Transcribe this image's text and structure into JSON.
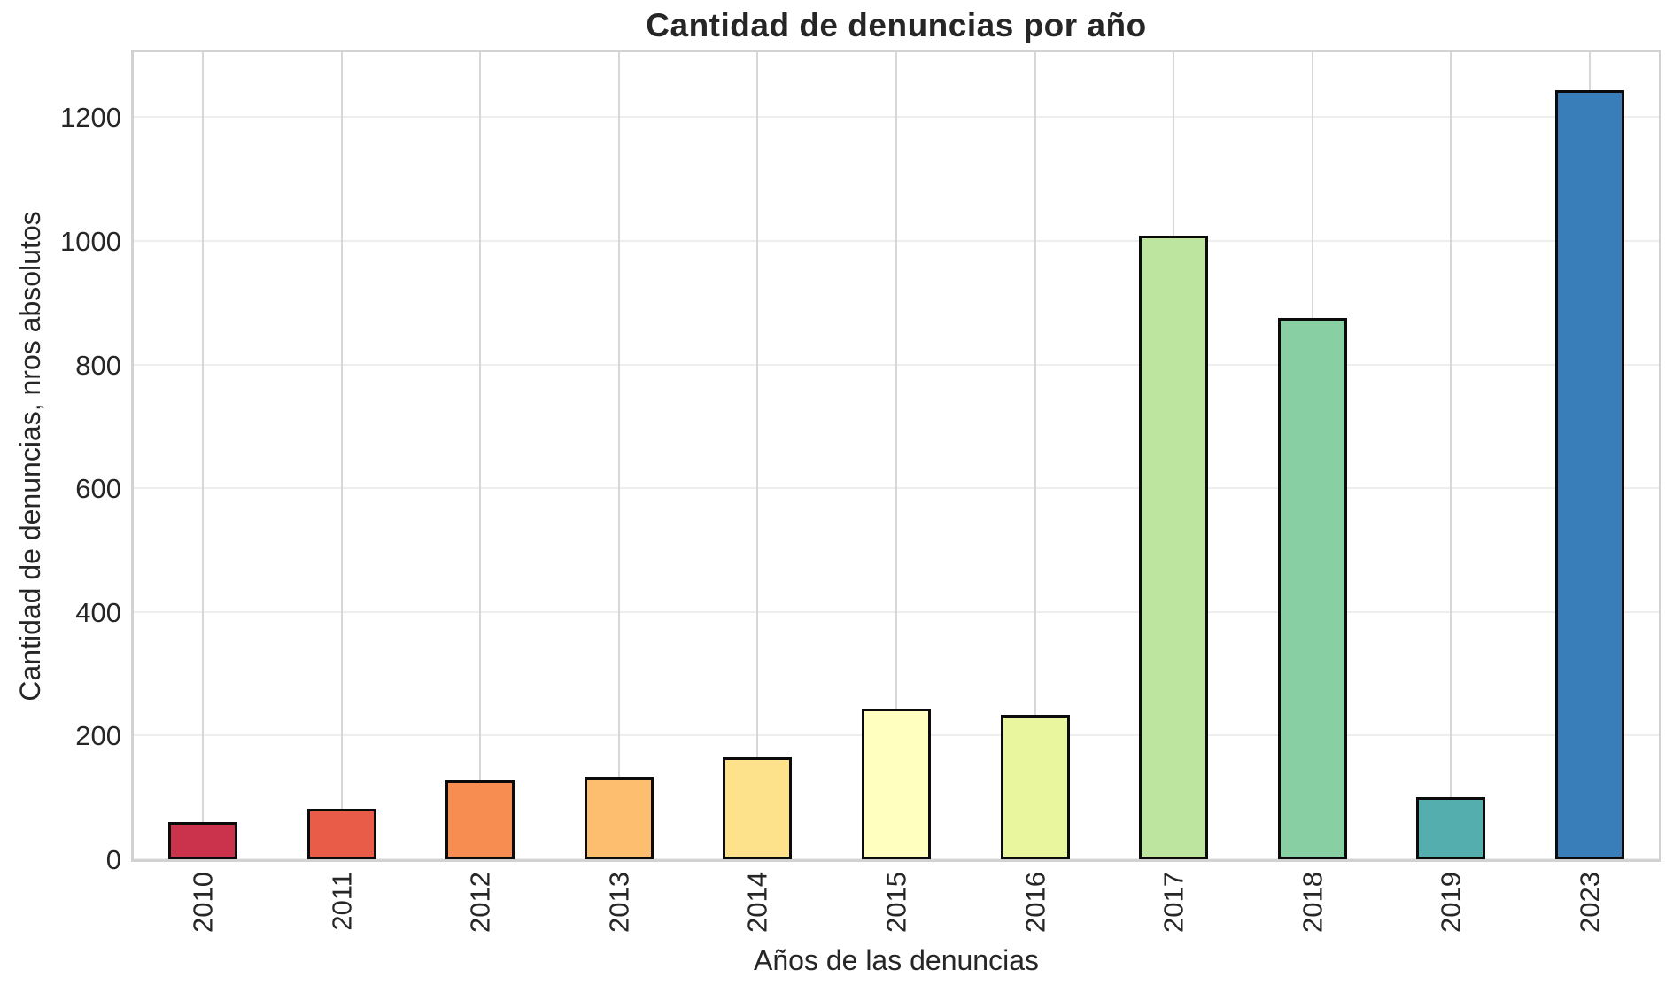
{
  "chart_data": {
    "type": "bar",
    "title": "Cantidad de denuncias por año",
    "xlabel": "Años de las denuncias",
    "ylabel": "Cantidad de denuncias, nros absolutos",
    "categories": [
      "2010",
      "2011",
      "2012",
      "2013",
      "2014",
      "2015",
      "2016",
      "2017",
      "2018",
      "2019",
      "2023"
    ],
    "values": [
      60,
      82,
      128,
      133,
      165,
      244,
      233,
      1008,
      875,
      100,
      1244
    ],
    "bar_colors": [
      "#CB334D",
      "#E95C47",
      "#F88D52",
      "#FDBE6F",
      "#FEE28B",
      "#FFFFBF",
      "#EAF69E",
      "#BEE5A0",
      "#88CFA4",
      "#54AEAD",
      "#397EB8"
    ],
    "bar_edge_color": "#0b0b0b",
    "yticks": [
      0,
      200,
      400,
      600,
      800,
      1000,
      1200
    ],
    "ylim": [
      0,
      1305
    ],
    "grid": true,
    "legend_position": "none",
    "x_tick_rotation_degrees": 90
  }
}
